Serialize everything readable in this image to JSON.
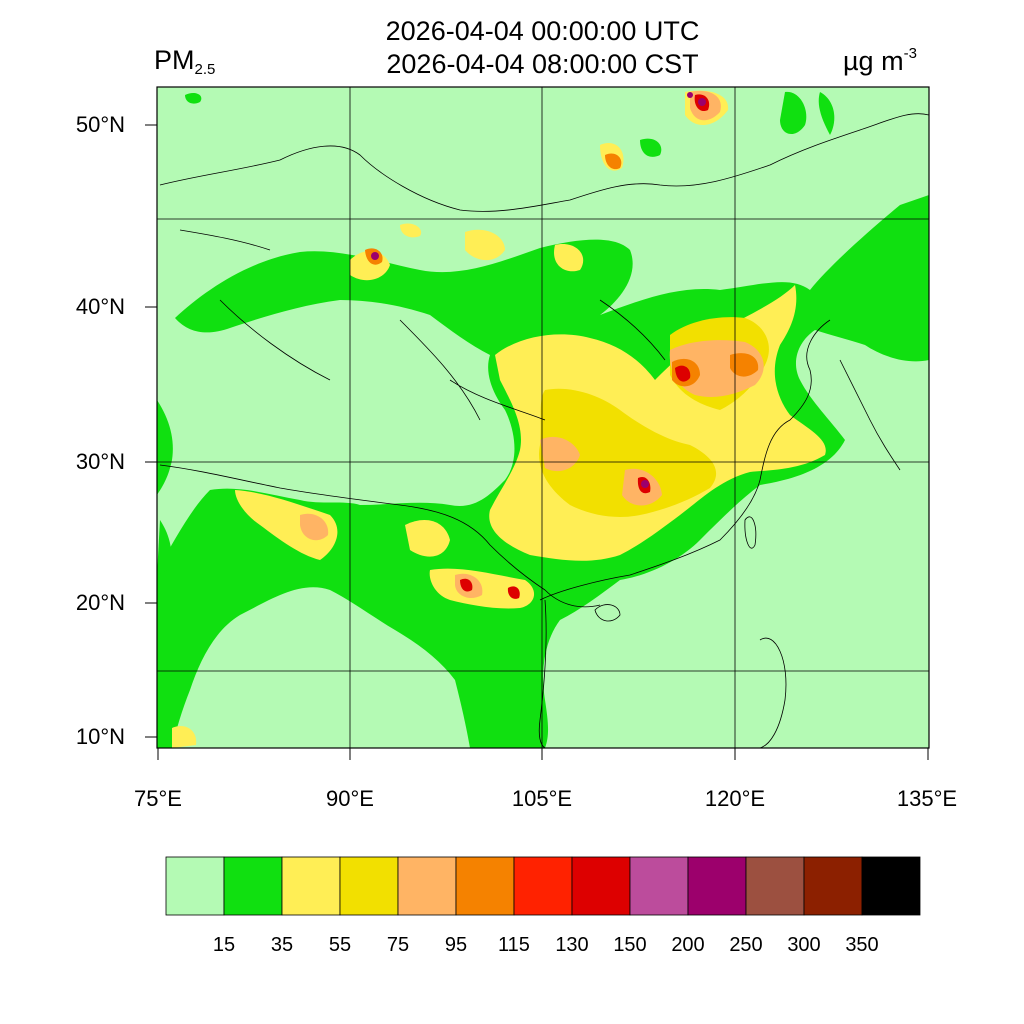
{
  "title": {
    "line1": "2026-04-04 00:00:00 UTC",
    "line2": "2026-04-04 08:00:00 CST"
  },
  "variable": {
    "name": "PM",
    "subscript": "2.5"
  },
  "unit": {
    "text": "µg m",
    "superscript": "-3"
  },
  "lat_ticks": [
    "50°N",
    "40°N",
    "30°N",
    "20°N",
    "10°N"
  ],
  "lon_ticks": [
    "75°E",
    "90°E",
    "105°E",
    "120°E",
    "135°E"
  ],
  "colorbar": {
    "levels": [
      "15",
      "35",
      "55",
      "75",
      "95",
      "115",
      "130",
      "150",
      "200",
      "250",
      "300",
      "350"
    ],
    "colors": [
      "#b4fab4",
      "#10e010",
      "#ffee55",
      "#f2e000",
      "#ffb464",
      "#f58200",
      "#ff2200",
      "#dd0000",
      "#bc4c9c",
      "#9c006c",
      "#9c5040",
      "#8c2000",
      "#000000"
    ]
  }
}
